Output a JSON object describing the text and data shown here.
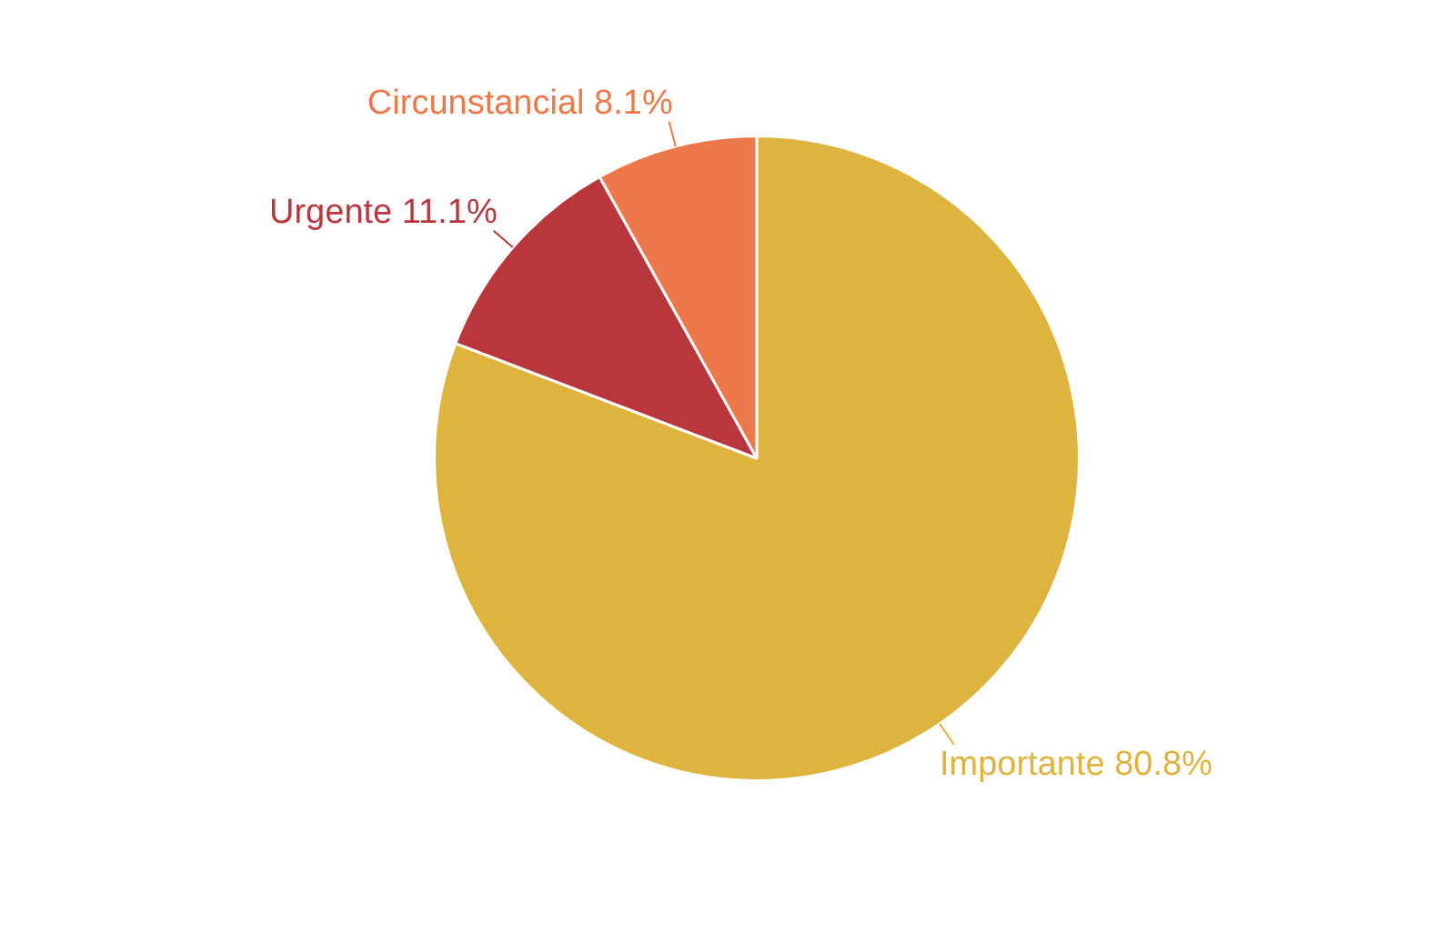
{
  "chart_data": {
    "type": "pie",
    "categories": [
      "Importante",
      "Urgente",
      "Circunstancial"
    ],
    "values": [
      80.8,
      11.1,
      8.1
    ],
    "colors": [
      "#dfb43e",
      "#b8373d",
      "#ed784a"
    ],
    "value_labels": [
      "80.8%",
      "11.1%",
      "8.1%"
    ],
    "legend": false
  }
}
